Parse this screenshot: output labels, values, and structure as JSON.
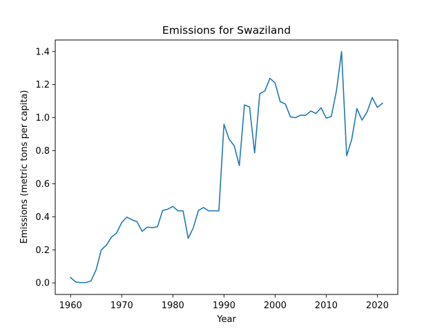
{
  "chart_data": {
    "type": "line",
    "title": "Emissions for Swaziland",
    "xlabel": "Year",
    "ylabel": "Emissions (metric tons per capita)",
    "xlim": [
      1957,
      2024
    ],
    "ylim": [
      -0.07,
      1.47
    ],
    "x_ticks": [
      1960,
      1970,
      1980,
      1990,
      2000,
      2010,
      2020
    ],
    "y_ticks": [
      0.0,
      0.2,
      0.4,
      0.6,
      0.8,
      1.0,
      1.2,
      1.4
    ],
    "y_tick_labels": [
      "0.0",
      "0.2",
      "0.4",
      "0.6",
      "0.8",
      "1.0",
      "1.2",
      "1.4"
    ],
    "grid": false,
    "series": [
      {
        "color": "#1f77b4",
        "x": [
          1960,
          1961,
          1962,
          1963,
          1964,
          1965,
          1966,
          1967,
          1968,
          1969,
          1970,
          1971,
          1972,
          1973,
          1974,
          1975,
          1976,
          1977,
          1978,
          1979,
          1980,
          1981,
          1982,
          1983,
          1984,
          1985,
          1986,
          1987,
          1988,
          1989,
          1990,
          1991,
          1992,
          1993,
          1994,
          1995,
          1996,
          1997,
          1998,
          1999,
          2000,
          2001,
          2002,
          2003,
          2004,
          2005,
          2006,
          2007,
          2008,
          2009,
          2010,
          2011,
          2012,
          2013,
          2014,
          2015,
          2016,
          2017,
          2018,
          2019,
          2020,
          2021
        ],
        "y": [
          0.033,
          0.005,
          0.002,
          0.002,
          0.012,
          0.08,
          0.2,
          0.228,
          0.277,
          0.302,
          0.365,
          0.398,
          0.382,
          0.37,
          0.312,
          0.338,
          0.334,
          0.34,
          0.438,
          0.446,
          0.463,
          0.436,
          0.436,
          0.27,
          0.333,
          0.438,
          0.456,
          0.436,
          0.436,
          0.436,
          0.96,
          0.87,
          0.83,
          0.71,
          1.077,
          1.065,
          0.787,
          1.145,
          1.162,
          1.238,
          1.21,
          1.097,
          1.083,
          1.005,
          1.0,
          1.015,
          1.015,
          1.04,
          1.025,
          1.06,
          0.997,
          1.007,
          1.163,
          1.4,
          0.77,
          0.87,
          1.055,
          0.985,
          1.035,
          1.122,
          1.062,
          1.087
        ]
      }
    ]
  }
}
